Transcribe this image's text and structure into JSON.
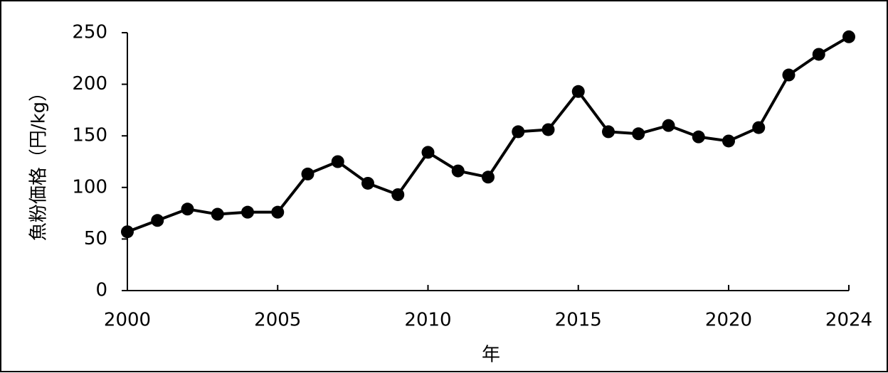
{
  "chart_data": {
    "type": "line",
    "x_label": "年",
    "y_label": "魚粉価格（円/kg）",
    "x": [
      2000,
      2001,
      2002,
      2003,
      2004,
      2005,
      2006,
      2007,
      2008,
      2009,
      2010,
      2011,
      2012,
      2013,
      2014,
      2015,
      2016,
      2017,
      2018,
      2019,
      2020,
      2021,
      2022,
      2023,
      2024
    ],
    "series": [
      {
        "color": "#000000",
        "values": [
          57,
          68,
          79,
          74,
          76,
          76,
          113,
          125,
          104,
          93,
          134,
          116,
          110,
          154,
          156,
          193,
          154,
          152,
          160,
          149,
          145,
          158,
          209,
          229,
          246
        ]
      }
    ],
    "xlim": [
      2000,
      2024
    ],
    "xticks": [
      2000,
      2005,
      2010,
      2015,
      2020,
      2024
    ],
    "ylim": [
      0,
      250
    ],
    "yticks": [
      0,
      50,
      100,
      150,
      200,
      250
    ],
    "grid": false
  }
}
